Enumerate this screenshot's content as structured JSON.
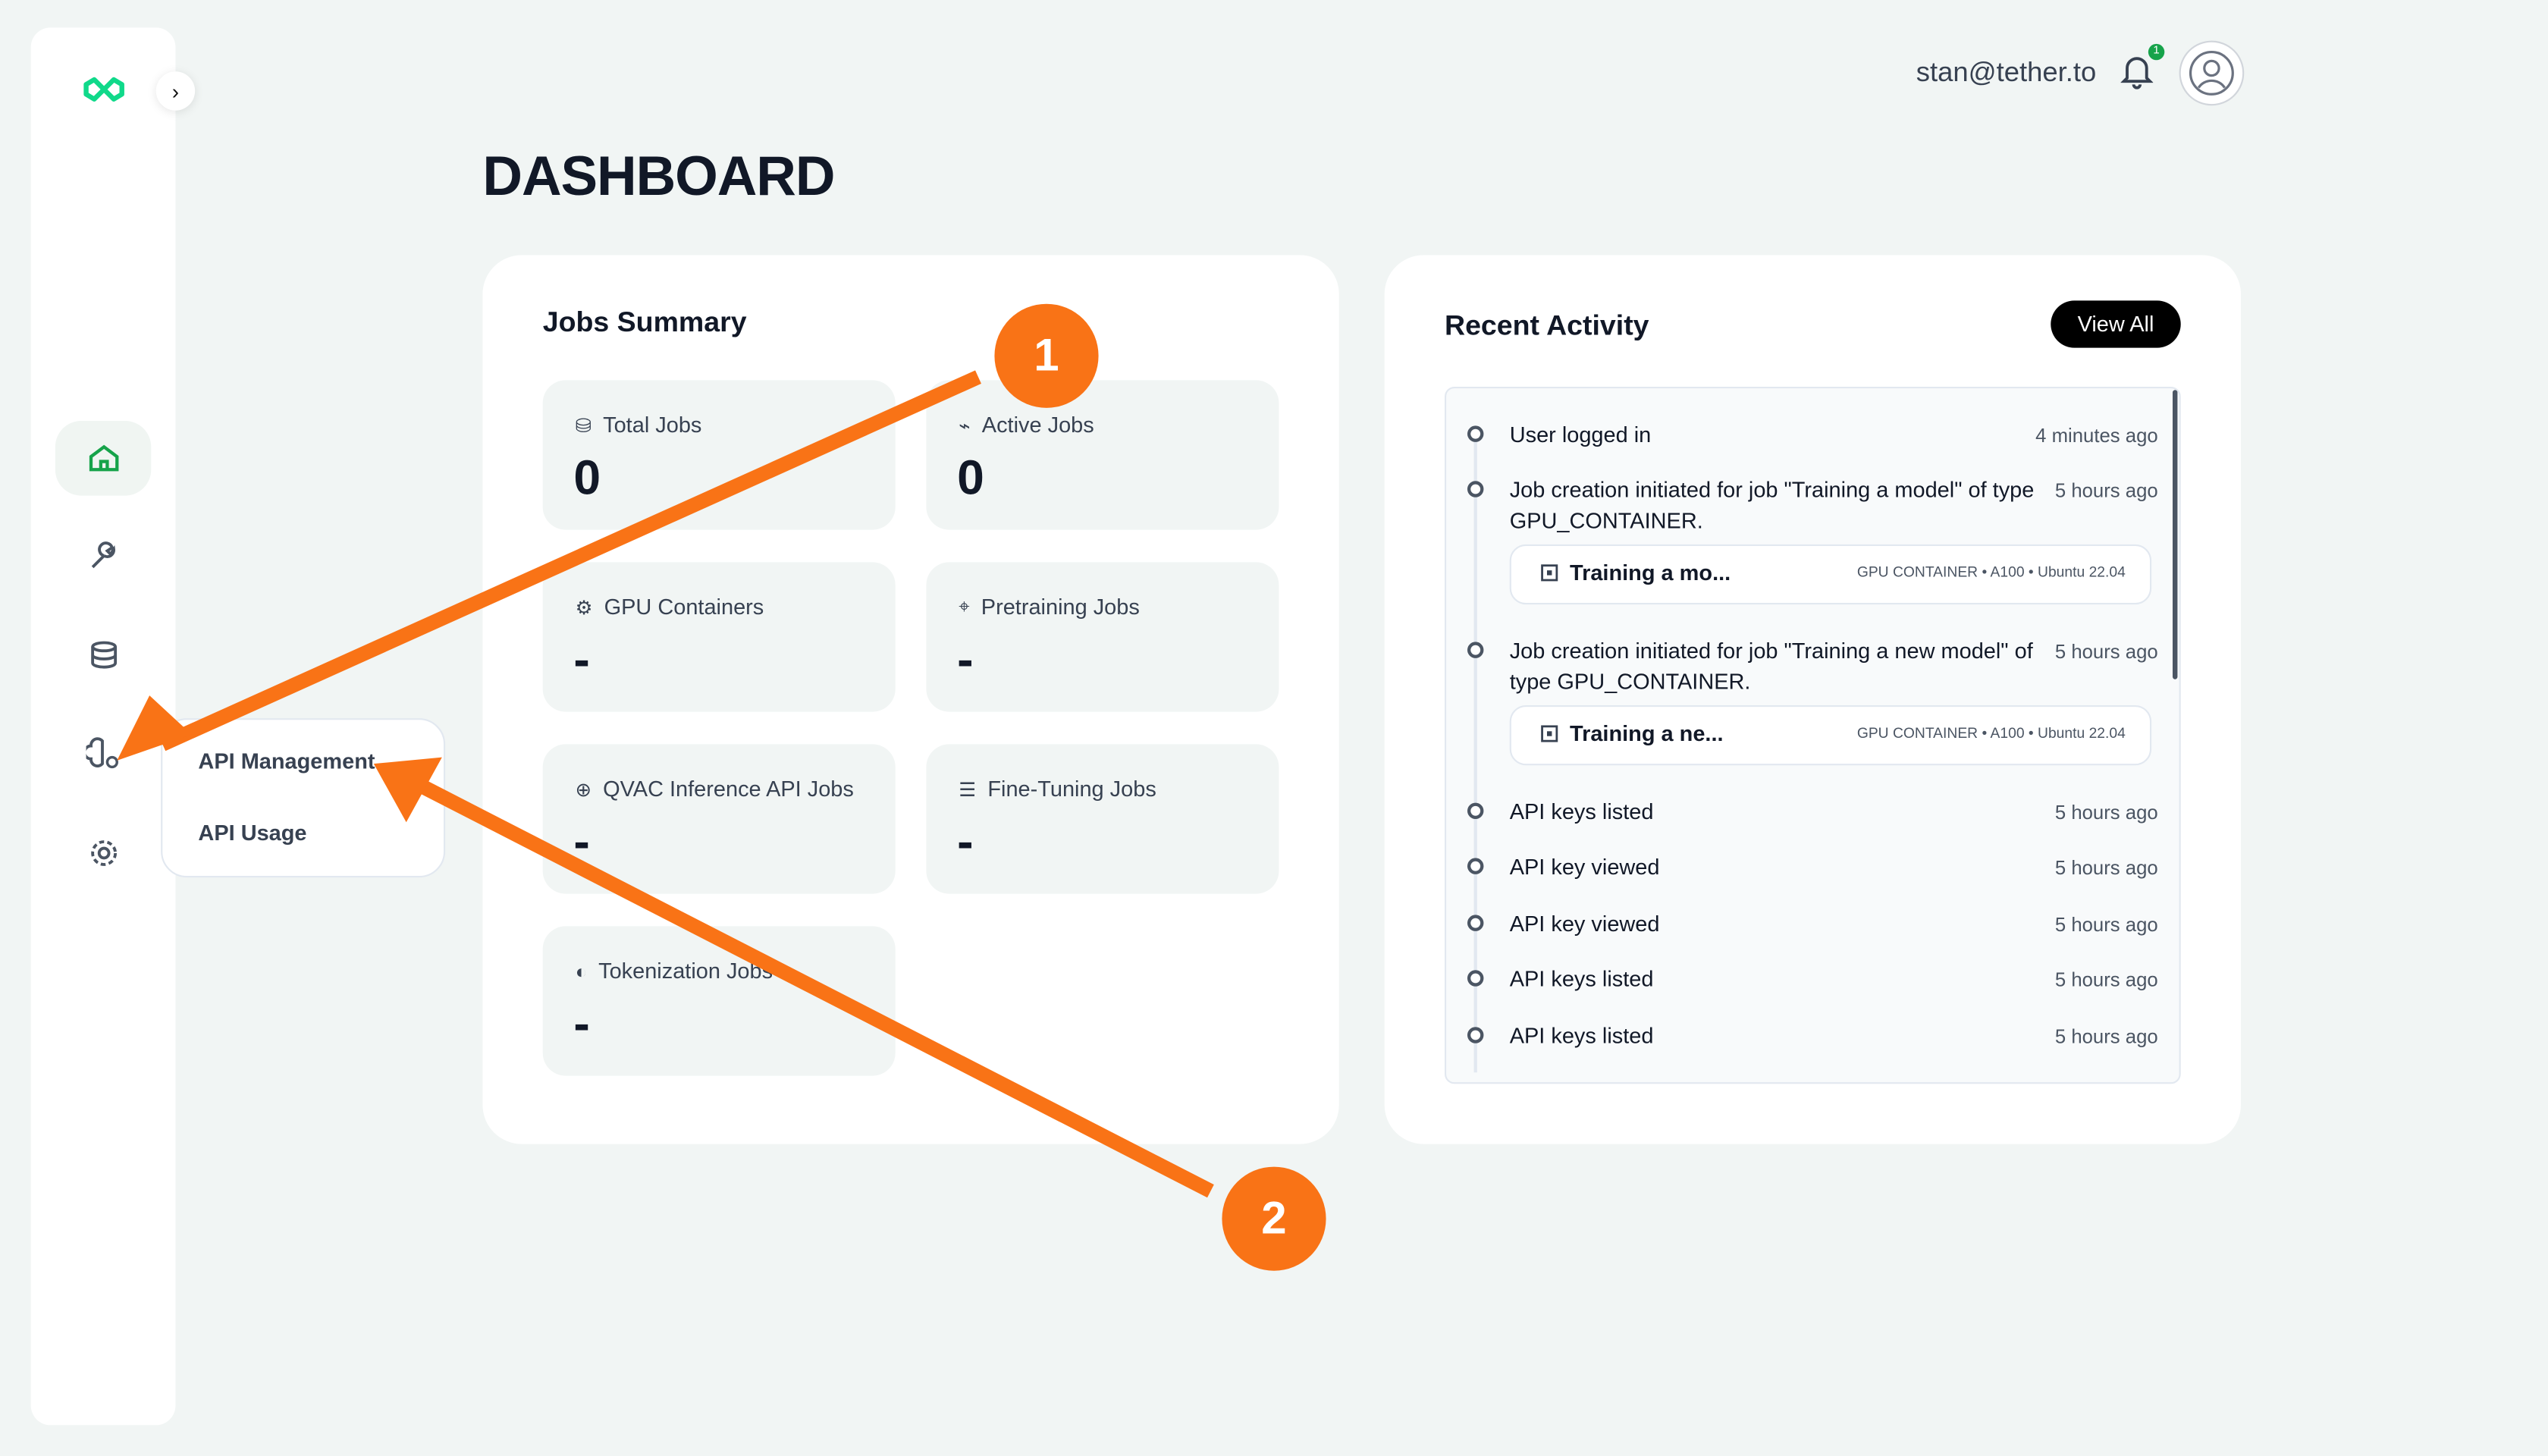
{
  "header": {
    "user_email": "stan@tether.to",
    "notification_count": "1"
  },
  "page_title": "DASHBOARD",
  "sidebar": {
    "items": [
      "home-icon",
      "wrench-icon",
      "database-icon",
      "brain-gear-icon",
      "settings-icon"
    ],
    "active": "home",
    "accent": "#16a34a"
  },
  "submenu": {
    "items": [
      "API Management",
      "API Usage"
    ]
  },
  "jobs_summary": {
    "title": "Jobs Summary",
    "stats": [
      {
        "label": "Total Jobs",
        "value": "0"
      },
      {
        "label": "Active Jobs",
        "value": "0"
      },
      {
        "label": "GPU Containers",
        "value": "-"
      },
      {
        "label": "Pretraining Jobs",
        "value": "-"
      },
      {
        "label": "QVAC Inference API Jobs",
        "value": "-"
      },
      {
        "label": "Fine-Tuning Jobs",
        "value": "-"
      },
      {
        "label": "Tokenization Jobs",
        "value": "-"
      }
    ]
  },
  "recent_activity": {
    "title": "Recent Activity",
    "view_all": "View All",
    "events": [
      {
        "text": "User logged in",
        "time": "4 minutes ago"
      },
      {
        "text": "Job creation initiated for job \"Training a model\" of type GPU_CONTAINER.",
        "time": "5 hours ago",
        "job": {
          "name": "Training a mo...",
          "meta": "GPU CONTAINER • A100 • Ubuntu 22.04"
        }
      },
      {
        "text": "Job creation initiated for job \"Training a new model\" of type GPU_CONTAINER.",
        "time": "5 hours ago",
        "job": {
          "name": "Training a ne...",
          "meta": "GPU CONTAINER • A100 • Ubuntu 22.04"
        }
      },
      {
        "text": "API keys listed",
        "time": "5 hours ago"
      },
      {
        "text": "API key viewed",
        "time": "5 hours ago"
      },
      {
        "text": "API key viewed",
        "time": "5 hours ago"
      },
      {
        "text": "API keys listed",
        "time": "5 hours ago"
      },
      {
        "text": "API keys listed",
        "time": "5 hours ago"
      }
    ]
  },
  "annotations": {
    "step1": "1",
    "step2": "2",
    "color": "#f97316"
  }
}
